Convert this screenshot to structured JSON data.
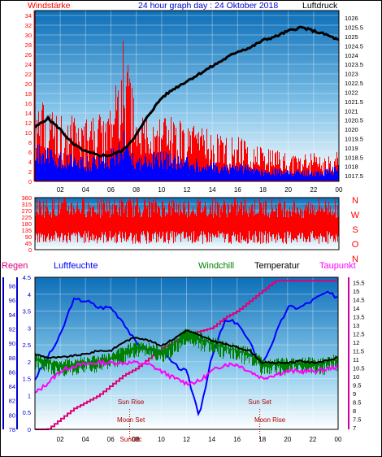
{
  "header": {
    "left_title": "Windstärke",
    "center_title": "24 hour graph day : 24 Oktober 2018",
    "right_title": "Luftdruck"
  },
  "colors": {
    "wind": "#ff0000",
    "gust": "#0000ff",
    "pressure": "#000000",
    "humidity": "#0000ff",
    "windchill": "#008000",
    "temperature": "#000000",
    "dewpoint": "#ff00ff",
    "rain": "#e0007a",
    "axis_left": "#ff0000",
    "axis_blue": "#0000cc",
    "axis_magenta": "#d000a0",
    "sky_top": "#1a84c8",
    "sky_bottom": "#ffffff"
  },
  "chart_data": [
    {
      "type": "line",
      "x_ticks": [
        "02",
        "04",
        "06",
        "08",
        "10",
        "12",
        "14",
        "16",
        "18",
        "20",
        "22",
        "00"
      ],
      "y_left": {
        "label": "Windstärke",
        "ticks": [
          0,
          2,
          4,
          6,
          8,
          10,
          12,
          14,
          16,
          18,
          20,
          22,
          24,
          26,
          28,
          30,
          32,
          34
        ],
        "range": [
          0,
          35
        ]
      },
      "y_right": {
        "label": "Luftdruck",
        "ticks": [
          "1017.5",
          "1018",
          "1018.5",
          "1019",
          "1019.5",
          "1020",
          "1020.5",
          "1021",
          "1021.5",
          "1022",
          "1022.5",
          "1023",
          "1023.5",
          "1024",
          "1024.5",
          "1025",
          "1025.5",
          "1026"
        ],
        "range": [
          1017.2,
          1026.4
        ]
      },
      "series": [
        {
          "key": "pressure",
          "x": [
            0,
            1,
            2,
            3,
            4,
            5,
            6,
            7,
            8,
            9,
            10,
            11,
            12,
            13,
            14,
            15,
            16,
            17,
            18,
            19,
            20,
            21,
            22,
            23,
            24
          ],
          "y": [
            1020.1,
            1020.6,
            1020.0,
            1019.2,
            1018.8,
            1018.6,
            1018.6,
            1018.9,
            1019.7,
            1020.8,
            1021.7,
            1022.2,
            1022.6,
            1023.0,
            1023.4,
            1023.8,
            1024.2,
            1024.4,
            1024.8,
            1025.0,
            1025.3,
            1025.5,
            1025.3,
            1025.1,
            1024.8
          ]
        },
        {
          "key": "wind_mean",
          "x": [
            0,
            2,
            4,
            6,
            7,
            8,
            10,
            12,
            14,
            16,
            18,
            20,
            22,
            23,
            24
          ],
          "y": [
            6,
            5,
            4,
            5,
            8,
            4,
            5,
            4,
            3,
            3,
            2,
            2,
            2,
            2,
            3
          ]
        },
        {
          "key": "wind_gust",
          "x": [
            0,
            2,
            4,
            6,
            7,
            8,
            10,
            12,
            14,
            16,
            18,
            20,
            22,
            23,
            24
          ],
          "y": [
            14,
            12,
            11,
            13,
            26,
            11,
            12,
            10,
            9,
            8,
            6,
            5,
            5,
            4,
            6
          ]
        }
      ]
    },
    {
      "type": "line",
      "x_ticks": [
        "02",
        "04",
        "06",
        "08",
        "10",
        "12",
        "14",
        "16",
        "18",
        "20",
        "22",
        "00"
      ],
      "y_left": {
        "ticks": [
          0,
          45,
          90,
          135,
          180,
          225,
          270,
          315,
          360
        ],
        "range": [
          0,
          360
        ]
      },
      "y_right_labels": [
        "N",
        "W",
        "S",
        "O",
        "N"
      ],
      "series": [
        {
          "key": "wind_direction",
          "band": [
            40,
            360
          ]
        }
      ]
    },
    {
      "type": "line",
      "x_ticks": [
        "02",
        "04",
        "06",
        "08",
        "10",
        "12",
        "14",
        "16",
        "18",
        "20",
        "22",
        "00"
      ],
      "legend": [
        "Regen",
        "Luftfeuchte",
        "Windchill",
        "Temperatur",
        "Taupunkt"
      ],
      "y_rain": {
        "label": "Regen",
        "ticks": [
          "0",
          "0.5",
          "1",
          "1.5",
          "2",
          "2.5",
          "3",
          "3.5",
          "4",
          "4.5"
        ],
        "range": [
          0,
          4.5
        ]
      },
      "y_humidity": {
        "label": "Luftfeuchte",
        "ticks": [
          "78",
          "80",
          "82",
          "84",
          "86",
          "88",
          "90",
          "92",
          "94",
          "96",
          "98"
        ],
        "range": [
          78,
          99.2
        ]
      },
      "y_temp": {
        "label": "Temperatur",
        "ticks": [
          "7",
          "7.5",
          "8",
          "8.5",
          "9",
          "9.5",
          "10",
          "10.5",
          "11",
          "11.5",
          "12",
          "12.5",
          "13",
          "13.5",
          "14",
          "14.5",
          "15",
          "15.5"
        ],
        "range": [
          6.9,
          15.8
        ]
      },
      "annotations": {
        "sun_rise": "Sun Rise",
        "sun_set": "Sun Set",
        "moon_set": "Moon Set",
        "moon_rise": "Moon Rise",
        "sun_cross": "Sun08c"
      },
      "series": [
        {
          "key": "humidity",
          "x": [
            0,
            1,
            2,
            3,
            4,
            5,
            6,
            7,
            8,
            9,
            10,
            11,
            12,
            13,
            14,
            15,
            16,
            17,
            18,
            19,
            20,
            21,
            22,
            23,
            24
          ],
          "y": [
            85,
            88,
            91,
            96,
            96,
            95,
            95,
            93,
            90,
            89,
            89,
            87,
            86,
            80,
            88,
            93,
            93,
            90,
            87,
            91,
            95,
            95,
            96,
            97,
            96.5
          ]
        },
        {
          "key": "temperature",
          "x": [
            0,
            1,
            2,
            3,
            4,
            5,
            6,
            7,
            8,
            9,
            10,
            11,
            12,
            13,
            14,
            15,
            16,
            17,
            18,
            19,
            20,
            21,
            22,
            23,
            24
          ],
          "y": [
            11.3,
            11.1,
            11.1,
            11.2,
            11.3,
            11.5,
            11.5,
            12.0,
            12.3,
            12.1,
            11.8,
            12.2,
            12.7,
            12.4,
            12.1,
            11.9,
            11.7,
            11.5,
            10.8,
            10.8,
            10.8,
            10.9,
            10.8,
            10.9,
            11.1
          ]
        },
        {
          "key": "windchill",
          "x": [
            0,
            1,
            2,
            3,
            4,
            5,
            6,
            7,
            8,
            9,
            10,
            11,
            12,
            13,
            14,
            15,
            16,
            17,
            18,
            19,
            20,
            21,
            22,
            23,
            24
          ],
          "y": [
            11.0,
            10.8,
            10.6,
            10.7,
            10.8,
            10.9,
            11.0,
            11.4,
            11.7,
            11.6,
            11.4,
            11.9,
            12.5,
            12.2,
            11.9,
            11.7,
            11.5,
            11.3,
            10.7,
            10.7,
            10.7,
            10.8,
            10.7,
            10.8,
            11.0
          ]
        },
        {
          "key": "dewpoint",
          "x": [
            0,
            1,
            2,
            3,
            4,
            5,
            6,
            7,
            8,
            9,
            10,
            11,
            12,
            13,
            14,
            15,
            16,
            17,
            18,
            19,
            20,
            21,
            22,
            23,
            24
          ],
          "y": [
            9.0,
            9.6,
            10.3,
            10.6,
            10.7,
            10.8,
            10.8,
            10.8,
            10.8,
            10.7,
            10.3,
            9.9,
            9.6,
            9.7,
            10.3,
            10.7,
            10.7,
            10.3,
            9.9,
            10.1,
            10.3,
            10.3,
            10.3,
            10.4,
            10.6
          ]
        },
        {
          "key": "rain",
          "x": [
            0,
            1,
            2,
            3,
            4,
            5,
            6,
            7,
            8,
            9,
            10,
            11,
            12,
            13,
            14,
            15,
            16,
            17,
            18,
            19,
            20,
            21,
            22,
            23,
            24
          ],
          "y": [
            0,
            0,
            0.3,
            0.6,
            0.8,
            1.0,
            1.3,
            1.6,
            1.8,
            2.1,
            2.4,
            2.6,
            2.8,
            2.9,
            3.0,
            3.3,
            3.5,
            3.8,
            4.1,
            4.4,
            4.4,
            4.4,
            4.4,
            4.4,
            4.4
          ]
        }
      ]
    }
  ]
}
